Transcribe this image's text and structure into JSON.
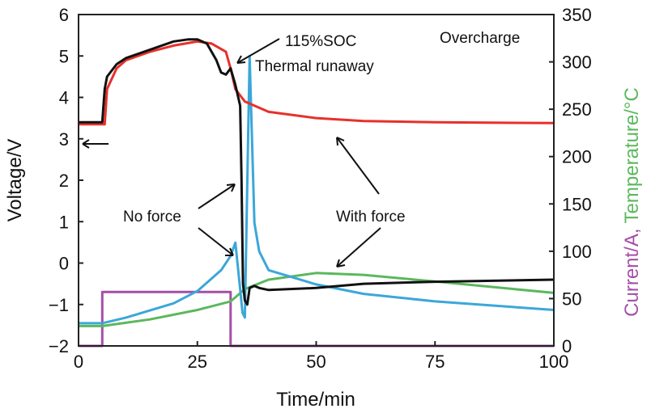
{
  "chart_data": {
    "type": "line",
    "xlabel": "Time/min",
    "ylabel": "Voltage/V",
    "ylabel_right": [
      "Current/A,",
      "Temperature/°C"
    ],
    "xlim": [
      0,
      100
    ],
    "ylim": [
      -2,
      6
    ],
    "ylim_right": [
      0,
      350
    ],
    "xticks": [
      "0",
      "25",
      "50",
      "75",
      "100"
    ],
    "yticks": [
      "−2",
      "−1",
      "0",
      "1",
      "2",
      "3",
      "4",
      "5",
      "6"
    ],
    "yticks_right": [
      "0",
      "50",
      "100",
      "150",
      "200",
      "250",
      "300",
      "350"
    ],
    "annotations": [
      "115%SOC",
      "Thermal runaway",
      "Overcharge",
      "No force",
      "With force"
    ],
    "series": [
      {
        "name": "Voltage (no force)",
        "axis": "left",
        "color": "#111111",
        "x": [
          0,
          5,
          5.5,
          6,
          8,
          10,
          15,
          20,
          23,
          25,
          27,
          29,
          30,
          31,
          32,
          33,
          34,
          34.3,
          34.6,
          35,
          35.5,
          36,
          37,
          38,
          40,
          50,
          60,
          75,
          100
        ],
        "y": [
          3.4,
          3.4,
          4.2,
          4.5,
          4.8,
          4.95,
          5.15,
          5.35,
          5.4,
          5.4,
          5.3,
          4.9,
          4.6,
          4.55,
          4.7,
          4.3,
          3.8,
          2,
          -0.5,
          -0.9,
          -1.0,
          -0.6,
          -0.55,
          -0.6,
          -0.65,
          -0.6,
          -0.5,
          -0.45,
          -0.4
        ]
      },
      {
        "name": "Voltage (with force)",
        "axis": "left",
        "color": "#e8302a",
        "x": [
          0,
          5.5,
          6,
          8,
          10,
          15,
          20,
          25,
          28,
          31,
          32,
          33,
          35,
          40,
          50,
          60,
          75,
          100
        ],
        "y": [
          3.35,
          3.35,
          4.2,
          4.7,
          4.9,
          5.1,
          5.25,
          5.35,
          5.3,
          5.1,
          4.7,
          4.2,
          3.9,
          3.65,
          3.5,
          3.43,
          3.4,
          3.38
        ]
      },
      {
        "name": "Temperature (no force)",
        "axis": "right",
        "color": "#3ba7d9",
        "x": [
          0,
          5,
          10,
          20,
          25,
          30,
          32,
          33,
          34,
          34.5,
          35,
          35.6,
          36,
          37,
          38,
          40,
          50,
          60,
          75,
          100
        ],
        "y": [
          24,
          24,
          30,
          45,
          58,
          80,
          95,
          109,
          60,
          35,
          30,
          200,
          306,
          130,
          100,
          80,
          65,
          55,
          47,
          38
        ]
      },
      {
        "name": "Temperature (with force)",
        "axis": "right",
        "color": "#5bb85d",
        "x": [
          0,
          5,
          15,
          25,
          32,
          35,
          40,
          50,
          60,
          75,
          100
        ],
        "y": [
          21,
          21,
          28,
          38,
          47,
          60,
          70,
          77,
          75,
          68,
          56
        ]
      },
      {
        "name": "Current",
        "axis": "right",
        "color": "#a44fa8",
        "x": [
          0,
          5,
          5,
          32,
          32,
          100
        ],
        "y": [
          0,
          0,
          57,
          57,
          0,
          0
        ]
      }
    ]
  }
}
